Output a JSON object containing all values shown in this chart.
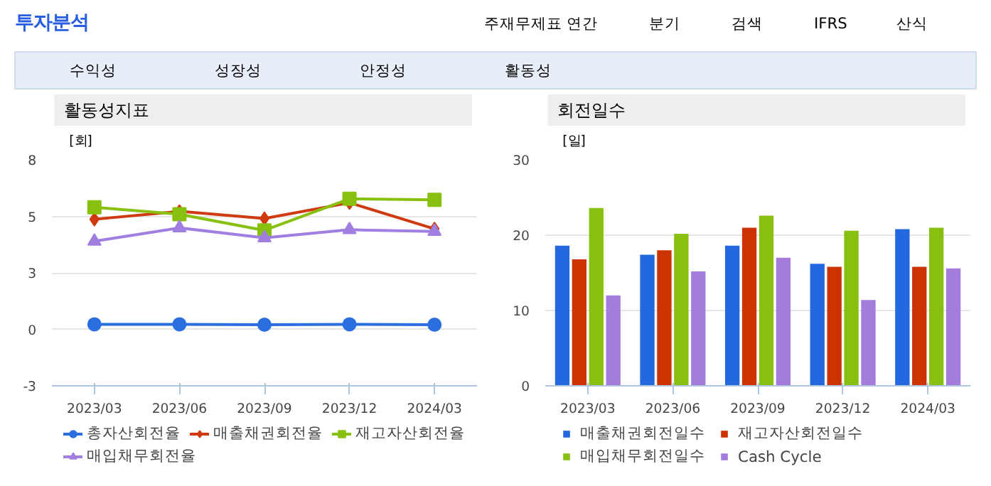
{
  "chart_data": [
    {
      "type": "line",
      "title": "활동성지표",
      "ylabel": "[회]",
      "annotations": [
        "투자분석",
        "주재무제표",
        "연간",
        "분기",
        "검색",
        "IFRS",
        "산식",
        "수익성",
        "성장성",
        "안정성",
        "활동성"
      ],
      "categories": [
        "2023/03",
        "2023/06",
        "2023/09",
        "2023/12",
        "2024/03"
      ],
      "ylim": [
        -2.7,
        8.1
      ],
      "yticks": [
        {
          "value": -2.7,
          "label": "-3"
        },
        {
          "value": 0,
          "label": "0"
        },
        {
          "value": 2.7,
          "label": "3"
        },
        {
          "value": 5.4,
          "label": "5"
        },
        {
          "value": 8.1,
          "label": "8"
        }
      ],
      "grid": "y",
      "legend": "bottom",
      "series": [
        {
          "name": "총자산회전율",
          "color": "#2a6ee0",
          "marker": "circle",
          "values": [
            0.24,
            0.24,
            0.22,
            0.24,
            0.22
          ]
        },
        {
          "name": "매출채권회전율",
          "color": "#d03a10",
          "marker": "diamond",
          "values": [
            5.26,
            5.64,
            5.3,
            6.05,
            4.8
          ]
        },
        {
          "name": "재고자산회전율",
          "color": "#88c010",
          "marker": "square",
          "values": [
            5.83,
            5.5,
            4.73,
            6.24,
            6.19
          ]
        },
        {
          "name": "매입채무회전율",
          "color": "#a07fe0",
          "marker": "triangle",
          "values": [
            4.21,
            4.85,
            4.37,
            4.76,
            4.68
          ]
        }
      ]
    },
    {
      "type": "bar",
      "title": "회전일수",
      "ylabel": "[일]",
      "categories": [
        "2023/03",
        "2023/06",
        "2023/09",
        "2023/12",
        "2024/03"
      ],
      "ylim": [
        0,
        30
      ],
      "yticks": [
        0,
        10,
        20,
        30
      ],
      "grid": "y",
      "legend": "bottom",
      "series": [
        {
          "name": "매출채권회전일수",
          "color": "#2468e0",
          "values": [
            18.6,
            17.4,
            18.6,
            16.2,
            20.8
          ]
        },
        {
          "name": "재고자산회전일수",
          "color": "#cc3300",
          "values": [
            16.8,
            18.0,
            21.0,
            15.8,
            15.8
          ]
        },
        {
          "name": "매입채무회전일수",
          "color": "#88c010",
          "values": [
            23.6,
            20.2,
            22.6,
            20.6,
            21.0
          ]
        },
        {
          "name": "Cash Cycle",
          "color": "#a47ddc",
          "values": [
            12.0,
            15.2,
            17.0,
            11.4,
            15.6
          ]
        }
      ]
    }
  ]
}
